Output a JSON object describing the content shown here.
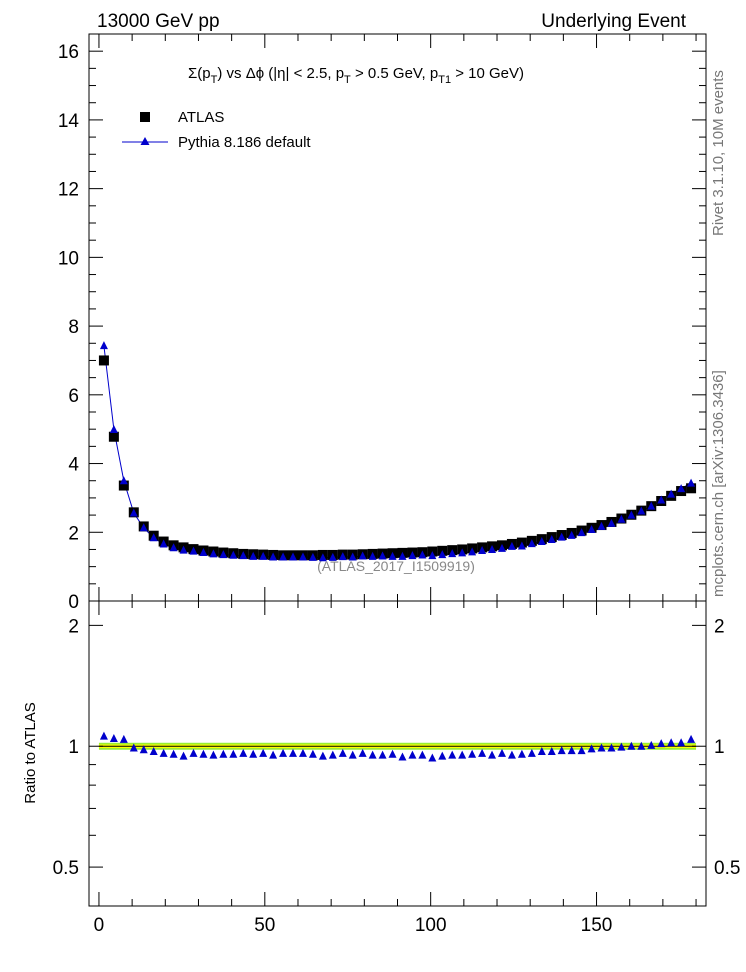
{
  "header": {
    "left": "13000 GeV pp",
    "right": "Underlying Event"
  },
  "side_text": {
    "rivet": "Rivet 3.1.10, 10M events",
    "mcplots": "mcplots.cern.ch [arXiv:1306.3436]"
  },
  "watermark": "(ATLAS_2017_I1509919)",
  "title_parts": {
    "sum": "Σ(p",
    "sub_t1": "T",
    "mid": ") vs Δϕ (|η| < 2.5, p",
    "sub_t2": "T",
    "mid2": " > 0.5 GeV, p",
    "sub_t3": "T1",
    "end": " > 10 GeV)"
  },
  "legend": {
    "data_label": "ATLAS",
    "mc_label": "Pythia 8.186 default"
  },
  "ratio_ylabel": "Ratio to ATLAS",
  "colors": {
    "data": "#000000",
    "mc": "#0000cc",
    "band_inner": "#ffff00",
    "band_outer": "#99ee33"
  },
  "chart_data": [
    {
      "type": "scatter",
      "panel": "main",
      "title": "Σ(pT) vs Δϕ (|η| < 2.5, pT > 0.5 GeV, pT1 > 10 GeV)",
      "xlim": [
        -3,
        183
      ],
      "ylim": [
        0,
        16.5
      ],
      "yticks": [
        0,
        2,
        4,
        6,
        8,
        10,
        12,
        14,
        16
      ],
      "legend_position": "top-left",
      "series": [
        {
          "name": "ATLAS",
          "marker": "square",
          "x": [
            1.5,
            4.5,
            7.5,
            10.5,
            13.5,
            16.5,
            19.5,
            22.5,
            25.5,
            28.5,
            31.5,
            34.5,
            37.5,
            40.5,
            43.5,
            46.5,
            49.5,
            52.5,
            55.5,
            58.5,
            61.5,
            64.5,
            67.5,
            70.5,
            73.5,
            76.5,
            79.5,
            82.5,
            85.5,
            88.5,
            91.5,
            94.5,
            97.5,
            100.5,
            103.5,
            106.5,
            109.5,
            112.5,
            115.5,
            118.5,
            121.5,
            124.5,
            127.5,
            130.5,
            133.5,
            136.5,
            139.5,
            142.5,
            145.5,
            148.5,
            151.5,
            154.5,
            157.5,
            160.5,
            163.5,
            166.5,
            169.5,
            172.5,
            175.5,
            178.5
          ],
          "y": [
            7.0,
            4.78,
            3.36,
            2.58,
            2.17,
            1.9,
            1.73,
            1.62,
            1.56,
            1.51,
            1.47,
            1.44,
            1.41,
            1.39,
            1.37,
            1.36,
            1.35,
            1.34,
            1.33,
            1.33,
            1.33,
            1.33,
            1.34,
            1.34,
            1.35,
            1.35,
            1.36,
            1.37,
            1.38,
            1.39,
            1.4,
            1.41,
            1.42,
            1.44,
            1.46,
            1.48,
            1.5,
            1.53,
            1.56,
            1.59,
            1.62,
            1.66,
            1.7,
            1.75,
            1.8,
            1.86,
            1.92,
            1.98,
            2.05,
            2.13,
            2.21,
            2.3,
            2.4,
            2.51,
            2.63,
            2.76,
            2.91,
            3.06,
            3.2,
            3.28
          ]
        },
        {
          "name": "Pythia 8.186 default",
          "marker": "triangle",
          "x": [
            1.5,
            4.5,
            7.5,
            10.5,
            13.5,
            16.5,
            19.5,
            22.5,
            25.5,
            28.5,
            31.5,
            34.5,
            37.5,
            40.5,
            43.5,
            46.5,
            49.5,
            52.5,
            55.5,
            58.5,
            61.5,
            64.5,
            67.5,
            70.5,
            73.5,
            76.5,
            79.5,
            82.5,
            85.5,
            88.5,
            91.5,
            94.5,
            97.5,
            100.5,
            103.5,
            106.5,
            109.5,
            112.5,
            115.5,
            118.5,
            121.5,
            124.5,
            127.5,
            130.5,
            133.5,
            136.5,
            139.5,
            142.5,
            145.5,
            148.5,
            151.5,
            154.5,
            157.5,
            160.5,
            163.5,
            166.5,
            169.5,
            172.5,
            175.5,
            178.5
          ],
          "y": [
            7.43,
            4.99,
            3.5,
            2.56,
            2.13,
            1.84,
            1.66,
            1.55,
            1.48,
            1.45,
            1.41,
            1.37,
            1.35,
            1.33,
            1.32,
            1.3,
            1.3,
            1.28,
            1.28,
            1.28,
            1.28,
            1.27,
            1.26,
            1.27,
            1.29,
            1.28,
            1.31,
            1.3,
            1.31,
            1.3,
            1.3,
            1.32,
            1.34,
            1.32,
            1.35,
            1.38,
            1.4,
            1.43,
            1.47,
            1.5,
            1.53,
            1.59,
            1.6,
            1.67,
            1.73,
            1.79,
            1.86,
            1.91,
            1.99,
            2.08,
            2.17,
            2.26,
            2.38,
            2.5,
            2.62,
            2.76,
            2.94,
            3.11,
            3.27,
            3.43
          ]
        }
      ]
    },
    {
      "type": "scatter",
      "panel": "ratio",
      "ylabel": "Ratio to ATLAS",
      "xlim": [
        -3,
        183
      ],
      "ylim": [
        0.4,
        2.3
      ],
      "yticks": [
        0.5,
        1,
        2
      ],
      "xticks": [
        0,
        50,
        100,
        150
      ],
      "band": {
        "inner": [
          0.99,
          1.01
        ],
        "outer": [
          0.98,
          1.02
        ]
      },
      "series": [
        {
          "name": "Pythia 8.186 default",
          "marker": "triangle",
          "x": [
            1.5,
            4.5,
            7.5,
            10.5,
            13.5,
            16.5,
            19.5,
            22.5,
            25.5,
            28.5,
            31.5,
            34.5,
            37.5,
            40.5,
            43.5,
            46.5,
            49.5,
            52.5,
            55.5,
            58.5,
            61.5,
            64.5,
            67.5,
            70.5,
            73.5,
            76.5,
            79.5,
            82.5,
            85.5,
            88.5,
            91.5,
            94.5,
            97.5,
            100.5,
            103.5,
            106.5,
            109.5,
            112.5,
            115.5,
            118.5,
            121.5,
            124.5,
            127.5,
            130.5,
            133.5,
            136.5,
            139.5,
            142.5,
            145.5,
            148.5,
            151.5,
            154.5,
            157.5,
            160.5,
            163.5,
            166.5,
            169.5,
            172.5,
            175.5,
            178.5
          ],
          "y": [
            1.06,
            1.045,
            1.04,
            0.99,
            0.98,
            0.97,
            0.96,
            0.955,
            0.945,
            0.96,
            0.955,
            0.95,
            0.955,
            0.955,
            0.96,
            0.955,
            0.96,
            0.95,
            0.96,
            0.96,
            0.96,
            0.955,
            0.945,
            0.95,
            0.96,
            0.95,
            0.96,
            0.95,
            0.95,
            0.955,
            0.94,
            0.95,
            0.95,
            0.935,
            0.945,
            0.95,
            0.95,
            0.955,
            0.96,
            0.95,
            0.96,
            0.95,
            0.955,
            0.96,
            0.97,
            0.97,
            0.975,
            0.975,
            0.975,
            0.985,
            0.99,
            0.99,
            0.995,
            1.0,
            1.0,
            1.005,
            1.015,
            1.02,
            1.02,
            1.04
          ]
        }
      ]
    }
  ]
}
